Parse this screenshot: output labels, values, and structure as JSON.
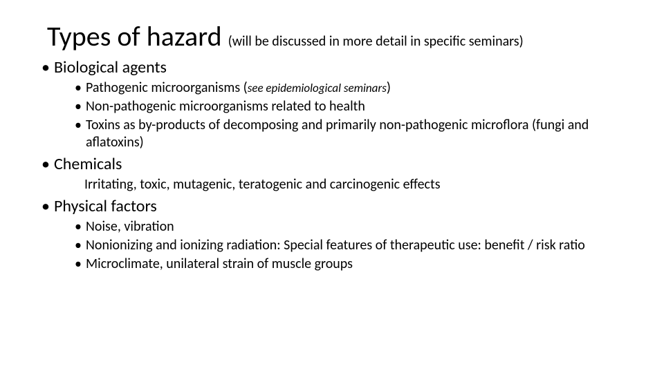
{
  "title": {
    "main": "Types of hazard ",
    "sub": "(will be discussed in more detail in specific seminars)"
  },
  "bullets": {
    "bio": {
      "heading": "Biological agents",
      "items": {
        "a_pre": "Pathogenic microorganisms (",
        "a_ital": "see epidemiological seminars",
        "a_post": ")",
        "b": "Non-pathogenic microorganisms related to health",
        "c": "Toxins as by-products of decomposing and primarily non-pathogenic microflora (fungi and aflatoxins)"
      }
    },
    "chem": {
      "heading": "Chemicals",
      "items": {
        "a": "Irritating, toxic, mutagenic, teratogenic and carcinogenic effects"
      }
    },
    "phys": {
      "heading": "Physical factors",
      "items": {
        "a": "Noise, vibration",
        "b": "Nonionizing and ionizing radiation: Special features of therapeutic use: benefit / risk ratio",
        "c": "Microclimate, unilateral strain of muscle groups"
      }
    }
  }
}
